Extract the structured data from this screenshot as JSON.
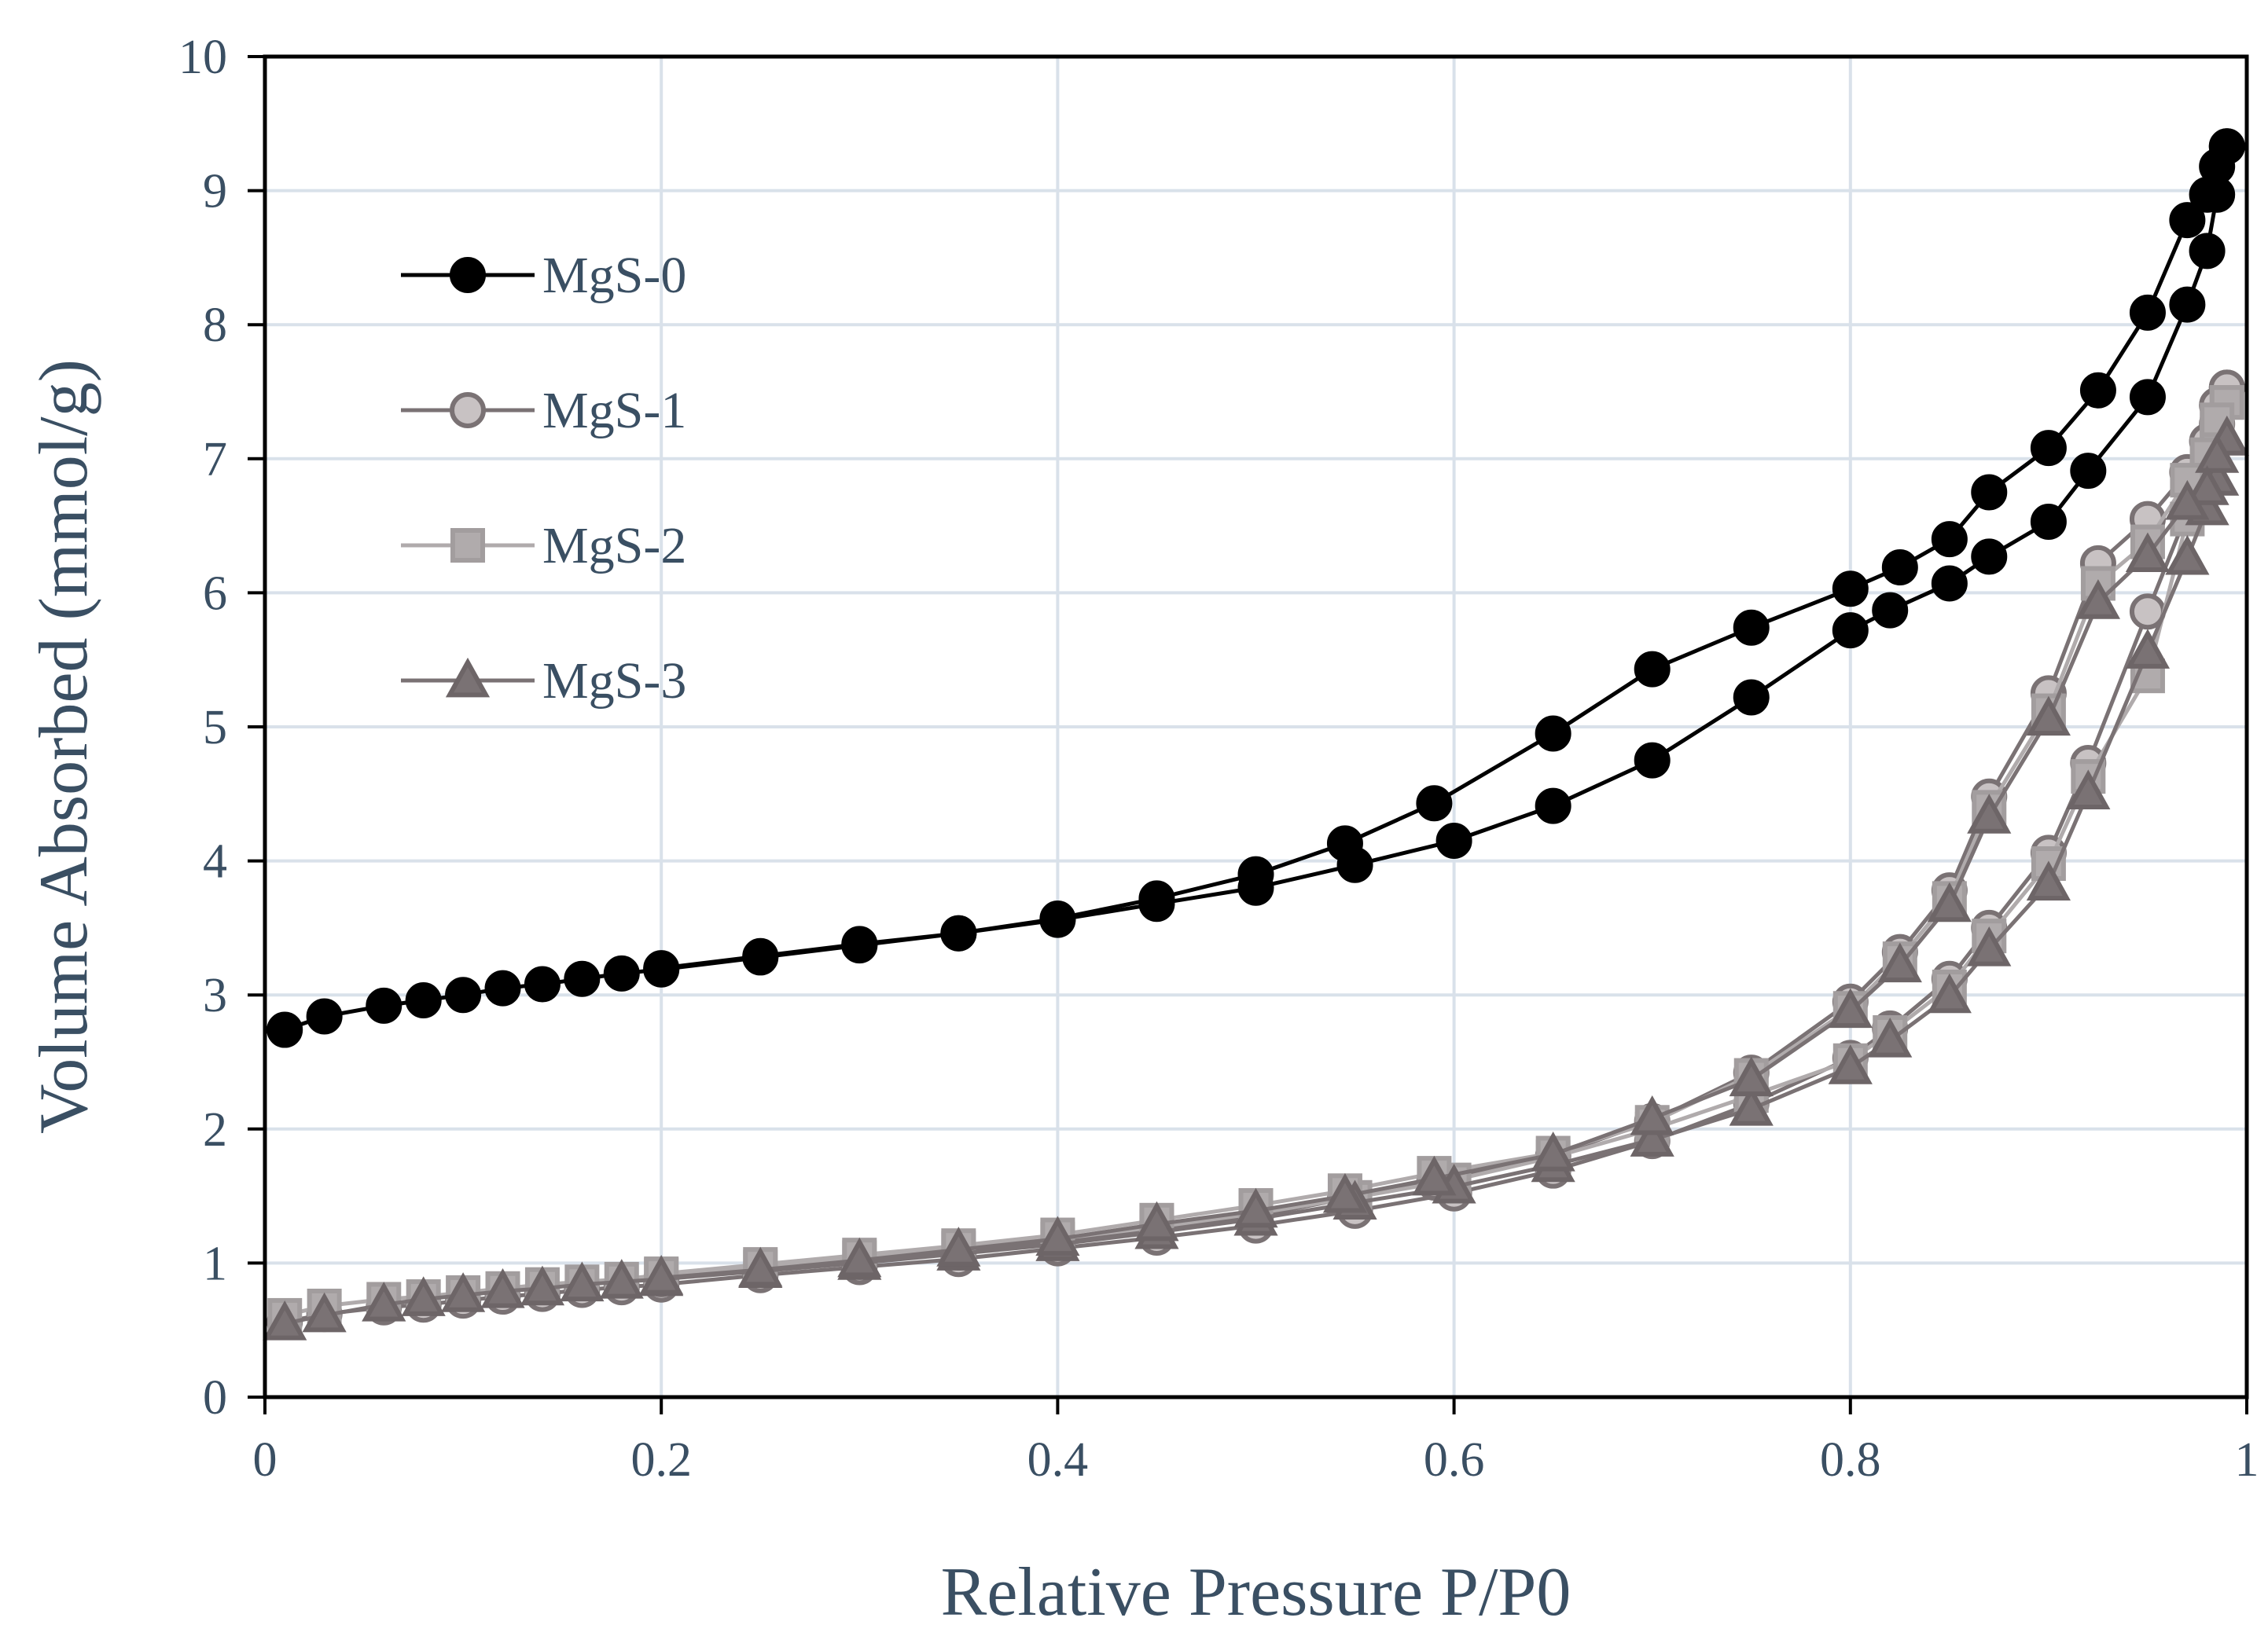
{
  "chart_data": {
    "type": "line",
    "title": "",
    "xlabel": "Relative Pressure P/P0",
    "ylabel": "Volume Absorbed (mmol/g)",
    "xlim": [
      0,
      1
    ],
    "ylim": [
      0,
      10
    ],
    "x_ticks": [
      "0",
      "0.2",
      "0.4",
      "0.6",
      "0.8",
      "1"
    ],
    "y_ticks": [
      "0",
      "1",
      "2",
      "3",
      "4",
      "5",
      "6",
      "7",
      "8",
      "9",
      "10"
    ],
    "grid": true,
    "legend_position": "top-left",
    "colors": {
      "axis_text": "#3a4f63",
      "grid": "#d9e1ea",
      "frame": "#000000"
    },
    "series": [
      {
        "name": "MgS-0",
        "marker": "circle",
        "line_color": "#000000",
        "fill_color": "#000000",
        "stroke_color": "#000000",
        "adsorption": [
          [
            0.01,
            2.74
          ],
          [
            0.03,
            2.84
          ],
          [
            0.06,
            2.92
          ],
          [
            0.08,
            2.96
          ],
          [
            0.1,
            3.0
          ],
          [
            0.12,
            3.05
          ],
          [
            0.14,
            3.08
          ],
          [
            0.16,
            3.12
          ],
          [
            0.18,
            3.16
          ],
          [
            0.2,
            3.19
          ],
          [
            0.25,
            3.28
          ],
          [
            0.3,
            3.37
          ],
          [
            0.35,
            3.46
          ],
          [
            0.4,
            3.56
          ],
          [
            0.45,
            3.68
          ],
          [
            0.5,
            3.8
          ],
          [
            0.55,
            3.97
          ],
          [
            0.6,
            4.15
          ],
          [
            0.65,
            4.41
          ],
          [
            0.7,
            4.75
          ],
          [
            0.75,
            5.22
          ],
          [
            0.8,
            5.72
          ],
          [
            0.82,
            5.87
          ],
          [
            0.85,
            6.07
          ],
          [
            0.87,
            6.27
          ],
          [
            0.9,
            6.53
          ],
          [
            0.92,
            6.91
          ],
          [
            0.95,
            7.46
          ],
          [
            0.97,
            8.15
          ],
          [
            0.98,
            8.55
          ],
          [
            0.985,
            8.97
          ],
          [
            0.99,
            9.33
          ]
        ],
        "desorption": [
          [
            0.99,
            9.33
          ],
          [
            0.985,
            9.18
          ],
          [
            0.98,
            8.97
          ],
          [
            0.97,
            8.78
          ],
          [
            0.95,
            8.09
          ],
          [
            0.925,
            7.51
          ],
          [
            0.9,
            7.08
          ],
          [
            0.87,
            6.75
          ],
          [
            0.85,
            6.4
          ],
          [
            0.825,
            6.19
          ],
          [
            0.8,
            6.03
          ],
          [
            0.75,
            5.74
          ],
          [
            0.7,
            5.43
          ],
          [
            0.65,
            4.95
          ],
          [
            0.59,
            4.43
          ],
          [
            0.545,
            4.13
          ],
          [
            0.5,
            3.9
          ],
          [
            0.45,
            3.72
          ],
          [
            0.4,
            3.57
          ],
          [
            0.35,
            3.46
          ],
          [
            0.3,
            3.38
          ],
          [
            0.25,
            3.29
          ],
          [
            0.2,
            3.2
          ]
        ]
      },
      {
        "name": "MgS-1",
        "marker": "circle",
        "line_color": "#7a7274",
        "fill_color": "#c8c2c3",
        "stroke_color": "#7a7274",
        "adsorption": [
          [
            0.01,
            0.56
          ],
          [
            0.03,
            0.62
          ],
          [
            0.06,
            0.67
          ],
          [
            0.08,
            0.69
          ],
          [
            0.1,
            0.72
          ],
          [
            0.12,
            0.75
          ],
          [
            0.14,
            0.77
          ],
          [
            0.16,
            0.8
          ],
          [
            0.18,
            0.82
          ],
          [
            0.2,
            0.84
          ],
          [
            0.25,
            0.91
          ],
          [
            0.3,
            0.97
          ],
          [
            0.35,
            1.03
          ],
          [
            0.4,
            1.11
          ],
          [
            0.45,
            1.19
          ],
          [
            0.5,
            1.28
          ],
          [
            0.55,
            1.39
          ],
          [
            0.6,
            1.52
          ],
          [
            0.65,
            1.69
          ],
          [
            0.7,
            1.91
          ],
          [
            0.75,
            2.19
          ],
          [
            0.8,
            2.53
          ],
          [
            0.82,
            2.75
          ],
          [
            0.85,
            3.12
          ],
          [
            0.87,
            3.5
          ],
          [
            0.9,
            4.06
          ],
          [
            0.92,
            4.73
          ],
          [
            0.95,
            5.86
          ],
          [
            0.97,
            6.6
          ],
          [
            0.98,
            6.96
          ],
          [
            0.985,
            7.26
          ],
          [
            0.99,
            7.53
          ]
        ],
        "desorption": [
          [
            0.99,
            7.53
          ],
          [
            0.985,
            7.4
          ],
          [
            0.98,
            7.13
          ],
          [
            0.97,
            6.9
          ],
          [
            0.95,
            6.55
          ],
          [
            0.925,
            6.22
          ],
          [
            0.9,
            5.25
          ],
          [
            0.87,
            4.48
          ],
          [
            0.85,
            3.78
          ],
          [
            0.825,
            3.32
          ],
          [
            0.8,
            2.95
          ],
          [
            0.75,
            2.42
          ],
          [
            0.7,
            2.06
          ],
          [
            0.65,
            1.8
          ],
          [
            0.59,
            1.6
          ],
          [
            0.545,
            1.48
          ],
          [
            0.5,
            1.35
          ],
          [
            0.45,
            1.26
          ],
          [
            0.4,
            1.16
          ],
          [
            0.35,
            1.08
          ],
          [
            0.3,
            1.01
          ],
          [
            0.25,
            0.95
          ],
          [
            0.2,
            0.88
          ]
        ]
      },
      {
        "name": "MgS-2",
        "marker": "square",
        "line_color": "#b0abac",
        "fill_color": "#b0abac",
        "stroke_color": "#a29d9e",
        "adsorption": [
          [
            0.01,
            0.61
          ],
          [
            0.03,
            0.68
          ],
          [
            0.06,
            0.73
          ],
          [
            0.08,
            0.75
          ],
          [
            0.1,
            0.78
          ],
          [
            0.12,
            0.81
          ],
          [
            0.14,
            0.84
          ],
          [
            0.16,
            0.86
          ],
          [
            0.18,
            0.88
          ],
          [
            0.2,
            0.91
          ],
          [
            0.25,
            0.97
          ],
          [
            0.3,
            1.04
          ],
          [
            0.35,
            1.11
          ],
          [
            0.4,
            1.18
          ],
          [
            0.45,
            1.27
          ],
          [
            0.5,
            1.37
          ],
          [
            0.55,
            1.49
          ],
          [
            0.6,
            1.62
          ],
          [
            0.65,
            1.79
          ],
          [
            0.7,
            2.0
          ],
          [
            0.75,
            2.25
          ],
          [
            0.8,
            2.51
          ],
          [
            0.82,
            2.72
          ],
          [
            0.85,
            3.06
          ],
          [
            0.87,
            3.44
          ],
          [
            0.9,
            3.98
          ],
          [
            0.92,
            4.63
          ],
          [
            0.95,
            5.38
          ],
          [
            0.97,
            6.55
          ],
          [
            0.98,
            6.9
          ],
          [
            0.985,
            7.18
          ],
          [
            0.99,
            7.42
          ]
        ],
        "desorption": [
          [
            0.99,
            7.42
          ],
          [
            0.985,
            7.29
          ],
          [
            0.98,
            7.03
          ],
          [
            0.97,
            6.84
          ],
          [
            0.95,
            6.38
          ],
          [
            0.925,
            6.07
          ],
          [
            0.9,
            5.12
          ],
          [
            0.87,
            4.4
          ],
          [
            0.85,
            3.72
          ],
          [
            0.825,
            3.27
          ],
          [
            0.8,
            2.9
          ],
          [
            0.75,
            2.4
          ],
          [
            0.7,
            2.05
          ],
          [
            0.65,
            1.82
          ],
          [
            0.59,
            1.67
          ],
          [
            0.545,
            1.54
          ],
          [
            0.5,
            1.43
          ],
          [
            0.45,
            1.32
          ],
          [
            0.4,
            1.21
          ],
          [
            0.35,
            1.13
          ],
          [
            0.3,
            1.06
          ],
          [
            0.25,
            0.99
          ],
          [
            0.2,
            0.92
          ]
        ]
      },
      {
        "name": "MgS-3",
        "marker": "triangle",
        "line_color": "#7a7274",
        "fill_color": "#7a7274",
        "stroke_color": "#6d6567",
        "adsorption": [
          [
            0.01,
            0.55
          ],
          [
            0.03,
            0.61
          ],
          [
            0.06,
            0.69
          ],
          [
            0.08,
            0.73
          ],
          [
            0.1,
            0.76
          ],
          [
            0.12,
            0.79
          ],
          [
            0.14,
            0.81
          ],
          [
            0.16,
            0.84
          ],
          [
            0.18,
            0.86
          ],
          [
            0.2,
            0.88
          ],
          [
            0.25,
            0.94
          ],
          [
            0.3,
            1.0
          ],
          [
            0.35,
            1.07
          ],
          [
            0.4,
            1.14
          ],
          [
            0.45,
            1.23
          ],
          [
            0.5,
            1.33
          ],
          [
            0.55,
            1.45
          ],
          [
            0.6,
            1.57
          ],
          [
            0.65,
            1.73
          ],
          [
            0.7,
            1.92
          ],
          [
            0.75,
            2.15
          ],
          [
            0.8,
            2.46
          ],
          [
            0.82,
            2.66
          ],
          [
            0.85,
            2.99
          ],
          [
            0.87,
            3.34
          ],
          [
            0.9,
            3.83
          ],
          [
            0.92,
            4.51
          ],
          [
            0.95,
            5.56
          ],
          [
            0.97,
            6.26
          ],
          [
            0.98,
            6.63
          ],
          [
            0.985,
            6.85
          ],
          [
            0.99,
            7.15
          ]
        ],
        "desorption": [
          [
            0.99,
            7.15
          ],
          [
            0.985,
            7.02
          ],
          [
            0.98,
            6.78
          ],
          [
            0.97,
            6.67
          ],
          [
            0.95,
            6.28
          ],
          [
            0.925,
            5.93
          ],
          [
            0.9,
            5.06
          ],
          [
            0.87,
            4.33
          ],
          [
            0.85,
            3.67
          ],
          [
            0.825,
            3.22
          ],
          [
            0.8,
            2.88
          ],
          [
            0.75,
            2.37
          ],
          [
            0.7,
            2.08
          ],
          [
            0.65,
            1.81
          ],
          [
            0.59,
            1.63
          ],
          [
            0.545,
            1.5
          ],
          [
            0.5,
            1.39
          ],
          [
            0.45,
            1.29
          ],
          [
            0.4,
            1.18
          ],
          [
            0.35,
            1.1
          ],
          [
            0.3,
            1.02
          ],
          [
            0.25,
            0.95
          ],
          [
            0.2,
            0.89
          ]
        ]
      }
    ]
  }
}
